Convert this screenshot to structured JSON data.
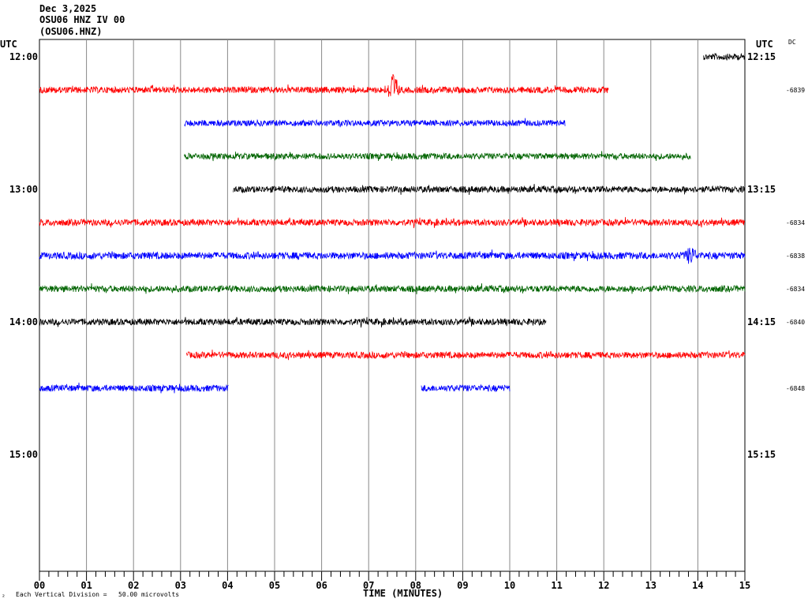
{
  "header": {
    "date": "Dec 3,2025",
    "station": "OSU06 HNZ IV 00",
    "channel": "(OSU06.HNZ)"
  },
  "labels": {
    "utc_left": "UTC",
    "utc_right": "UTC",
    "dc": "DC",
    "x_axis_title": "TIME (MINUTES)",
    "scale_note": "Each Vertical Division =   50.00 microvolts",
    "corner_mark": "²"
  },
  "chart_data": {
    "type": "line",
    "title": "",
    "xlabel": "TIME (MINUTES)",
    "ylabel": "",
    "xlim": [
      0,
      15
    ],
    "x_ticks": [
      "00",
      "01",
      "02",
      "03",
      "04",
      "05",
      "06",
      "07",
      "08",
      "09",
      "10",
      "11",
      "12",
      "13",
      "14",
      "15"
    ],
    "grid": true,
    "left_time_labels": [
      {
        "row": 0,
        "text": "12:00"
      },
      {
        "row": 4,
        "text": "13:00"
      },
      {
        "row": 8,
        "text": "14:00"
      },
      {
        "row": 12,
        "text": "15:00"
      }
    ],
    "right_time_labels": [
      {
        "row": 0,
        "text": "12:15"
      },
      {
        "row": 4,
        "text": "13:15"
      },
      {
        "row": 8,
        "text": "14:15"
      },
      {
        "row": 12,
        "text": "15:15"
      }
    ],
    "dc_labels": [
      {
        "row": 1,
        "text": "-6839"
      },
      {
        "row": 5,
        "text": "-6834"
      },
      {
        "row": 6,
        "text": "-6838"
      },
      {
        "row": 7,
        "text": "-6834"
      },
      {
        "row": 8,
        "text": "-6840"
      },
      {
        "row": 10,
        "text": "-6848"
      }
    ],
    "traces": [
      {
        "row": 0,
        "color": "#000000",
        "start": 14.12,
        "end": 15.0,
        "amp": 0.35,
        "events": []
      },
      {
        "row": 1,
        "color": "#ff0000",
        "start": 0.0,
        "end": 12.1,
        "amp": 0.35,
        "events": [
          {
            "at": 7.52,
            "amp": 1.8
          }
        ]
      },
      {
        "row": 2,
        "color": "#0000ff",
        "start": 3.08,
        "end": 11.18,
        "amp": 0.33,
        "events": []
      },
      {
        "row": 3,
        "color": "#006400",
        "start": 3.08,
        "end": 13.85,
        "amp": 0.33,
        "events": []
      },
      {
        "row": 4,
        "color": "#000000",
        "start": 4.12,
        "end": 15.0,
        "amp": 0.35,
        "events": []
      },
      {
        "row": 5,
        "color": "#ff0000",
        "start": 0.0,
        "end": 15.0,
        "amp": 0.35,
        "events": []
      },
      {
        "row": 6,
        "color": "#0000ff",
        "start": 0.0,
        "end": 15.0,
        "amp": 0.38,
        "events": [
          {
            "at": 13.85,
            "amp": 0.8
          }
        ]
      },
      {
        "row": 7,
        "color": "#006400",
        "start": 0.0,
        "end": 15.0,
        "amp": 0.35,
        "events": []
      },
      {
        "row": 8,
        "color": "#000000",
        "start": 0.0,
        "end": 10.78,
        "amp": 0.35,
        "events": []
      },
      {
        "row": 9,
        "color": "#ff0000",
        "start": 3.12,
        "end": 15.0,
        "amp": 0.35,
        "events": []
      },
      {
        "row": 10,
        "color": "#0000ff",
        "start": 0.0,
        "end": 4.02,
        "amp": 0.35,
        "events": []
      },
      {
        "row": 10,
        "color": "#0000ff",
        "start": 8.12,
        "end": 10.0,
        "amp": 0.35,
        "events": []
      }
    ]
  }
}
